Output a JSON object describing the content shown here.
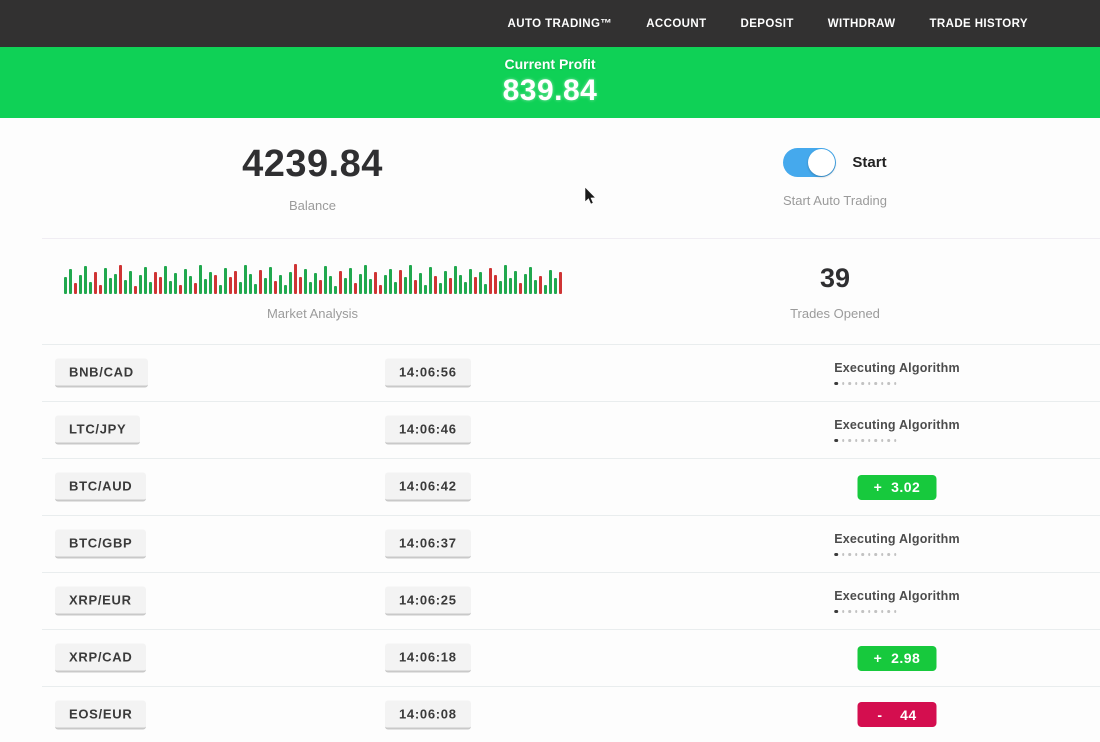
{
  "nav": {
    "items": [
      {
        "label": "AUTO TRADING™"
      },
      {
        "label": "ACCOUNT"
      },
      {
        "label": "DEPOSIT"
      },
      {
        "label": "WITHDRAW"
      },
      {
        "label": "TRADE HISTORY"
      }
    ]
  },
  "banner": {
    "label": "Current Profit",
    "value": "839.84"
  },
  "stats": {
    "balance": {
      "value": "4239.84",
      "label": "Balance"
    },
    "auto_trading": {
      "toggle_label": "Start",
      "label": "Start Auto Trading",
      "toggle_on": true
    },
    "market": {
      "label": "Market Analysis"
    },
    "trades": {
      "value": "39",
      "label": "Trades Opened"
    }
  },
  "table": {
    "executing_label": "Executing Algorithm",
    "progress_dots": 10
  },
  "rows": [
    {
      "pair": "BNB/CAD",
      "time": "14:06:56",
      "status": "executing",
      "result": ""
    },
    {
      "pair": "LTC/JPY",
      "time": "14:06:46",
      "status": "executing",
      "result": ""
    },
    {
      "pair": "BTC/AUD",
      "time": "14:06:42",
      "status": "profit",
      "result": "+  3.02"
    },
    {
      "pair": "BTC/GBP",
      "time": "14:06:37",
      "status": "executing",
      "result": ""
    },
    {
      "pair": "XRP/EUR",
      "time": "14:06:25",
      "status": "executing",
      "result": ""
    },
    {
      "pair": "XRP/CAD",
      "time": "14:06:18",
      "status": "profit",
      "result": "+  2.98"
    },
    {
      "pair": "EOS/EUR",
      "time": "14:06:08",
      "status": "loss",
      "result": "-    44"
    }
  ],
  "chart_data": {
    "type": "bar",
    "title": "Market Analysis",
    "xlabel": "",
    "ylabel": "",
    "legend": false,
    "grid": false,
    "ylim": [
      0,
      100
    ],
    "values": [
      55,
      80,
      35,
      60,
      90,
      40,
      70,
      30,
      85,
      50,
      65,
      95,
      45,
      75,
      25,
      60,
      88,
      38,
      72,
      55,
      90,
      42,
      68,
      30,
      80,
      58,
      35,
      92,
      48,
      70,
      60,
      28,
      85,
      55,
      75,
      40,
      95,
      65,
      32,
      78,
      50,
      88,
      42,
      62,
      30,
      70,
      96,
      55,
      80,
      38,
      68,
      45,
      90,
      58,
      25,
      75,
      52,
      85,
      35,
      65,
      92,
      48,
      72,
      30,
      60,
      82,
      40,
      78,
      55,
      95,
      45,
      68,
      28,
      88,
      58,
      35,
      75,
      50,
      90,
      62,
      38,
      80,
      55,
      70,
      32,
      85,
      60,
      42,
      92,
      50,
      75,
      35,
      65,
      88,
      45,
      58,
      28,
      78,
      52,
      70
    ],
    "colors": "ggrgggrrgggrggrgggrrgggrggrgggrggrrggggrggrgggrrgggrgggrggrgggrrgggrggrgggrggrggggrggrrggggrgggrgggr"
  },
  "colors": {
    "nav_bg": "#323131",
    "banner_green": "#0fd156",
    "profit_green": "#17c93d",
    "loss_red": "#d40e4f",
    "toggle_blue": "#45a9ed",
    "chart_green": "#21a84e",
    "chart_red": "#cf3434"
  }
}
